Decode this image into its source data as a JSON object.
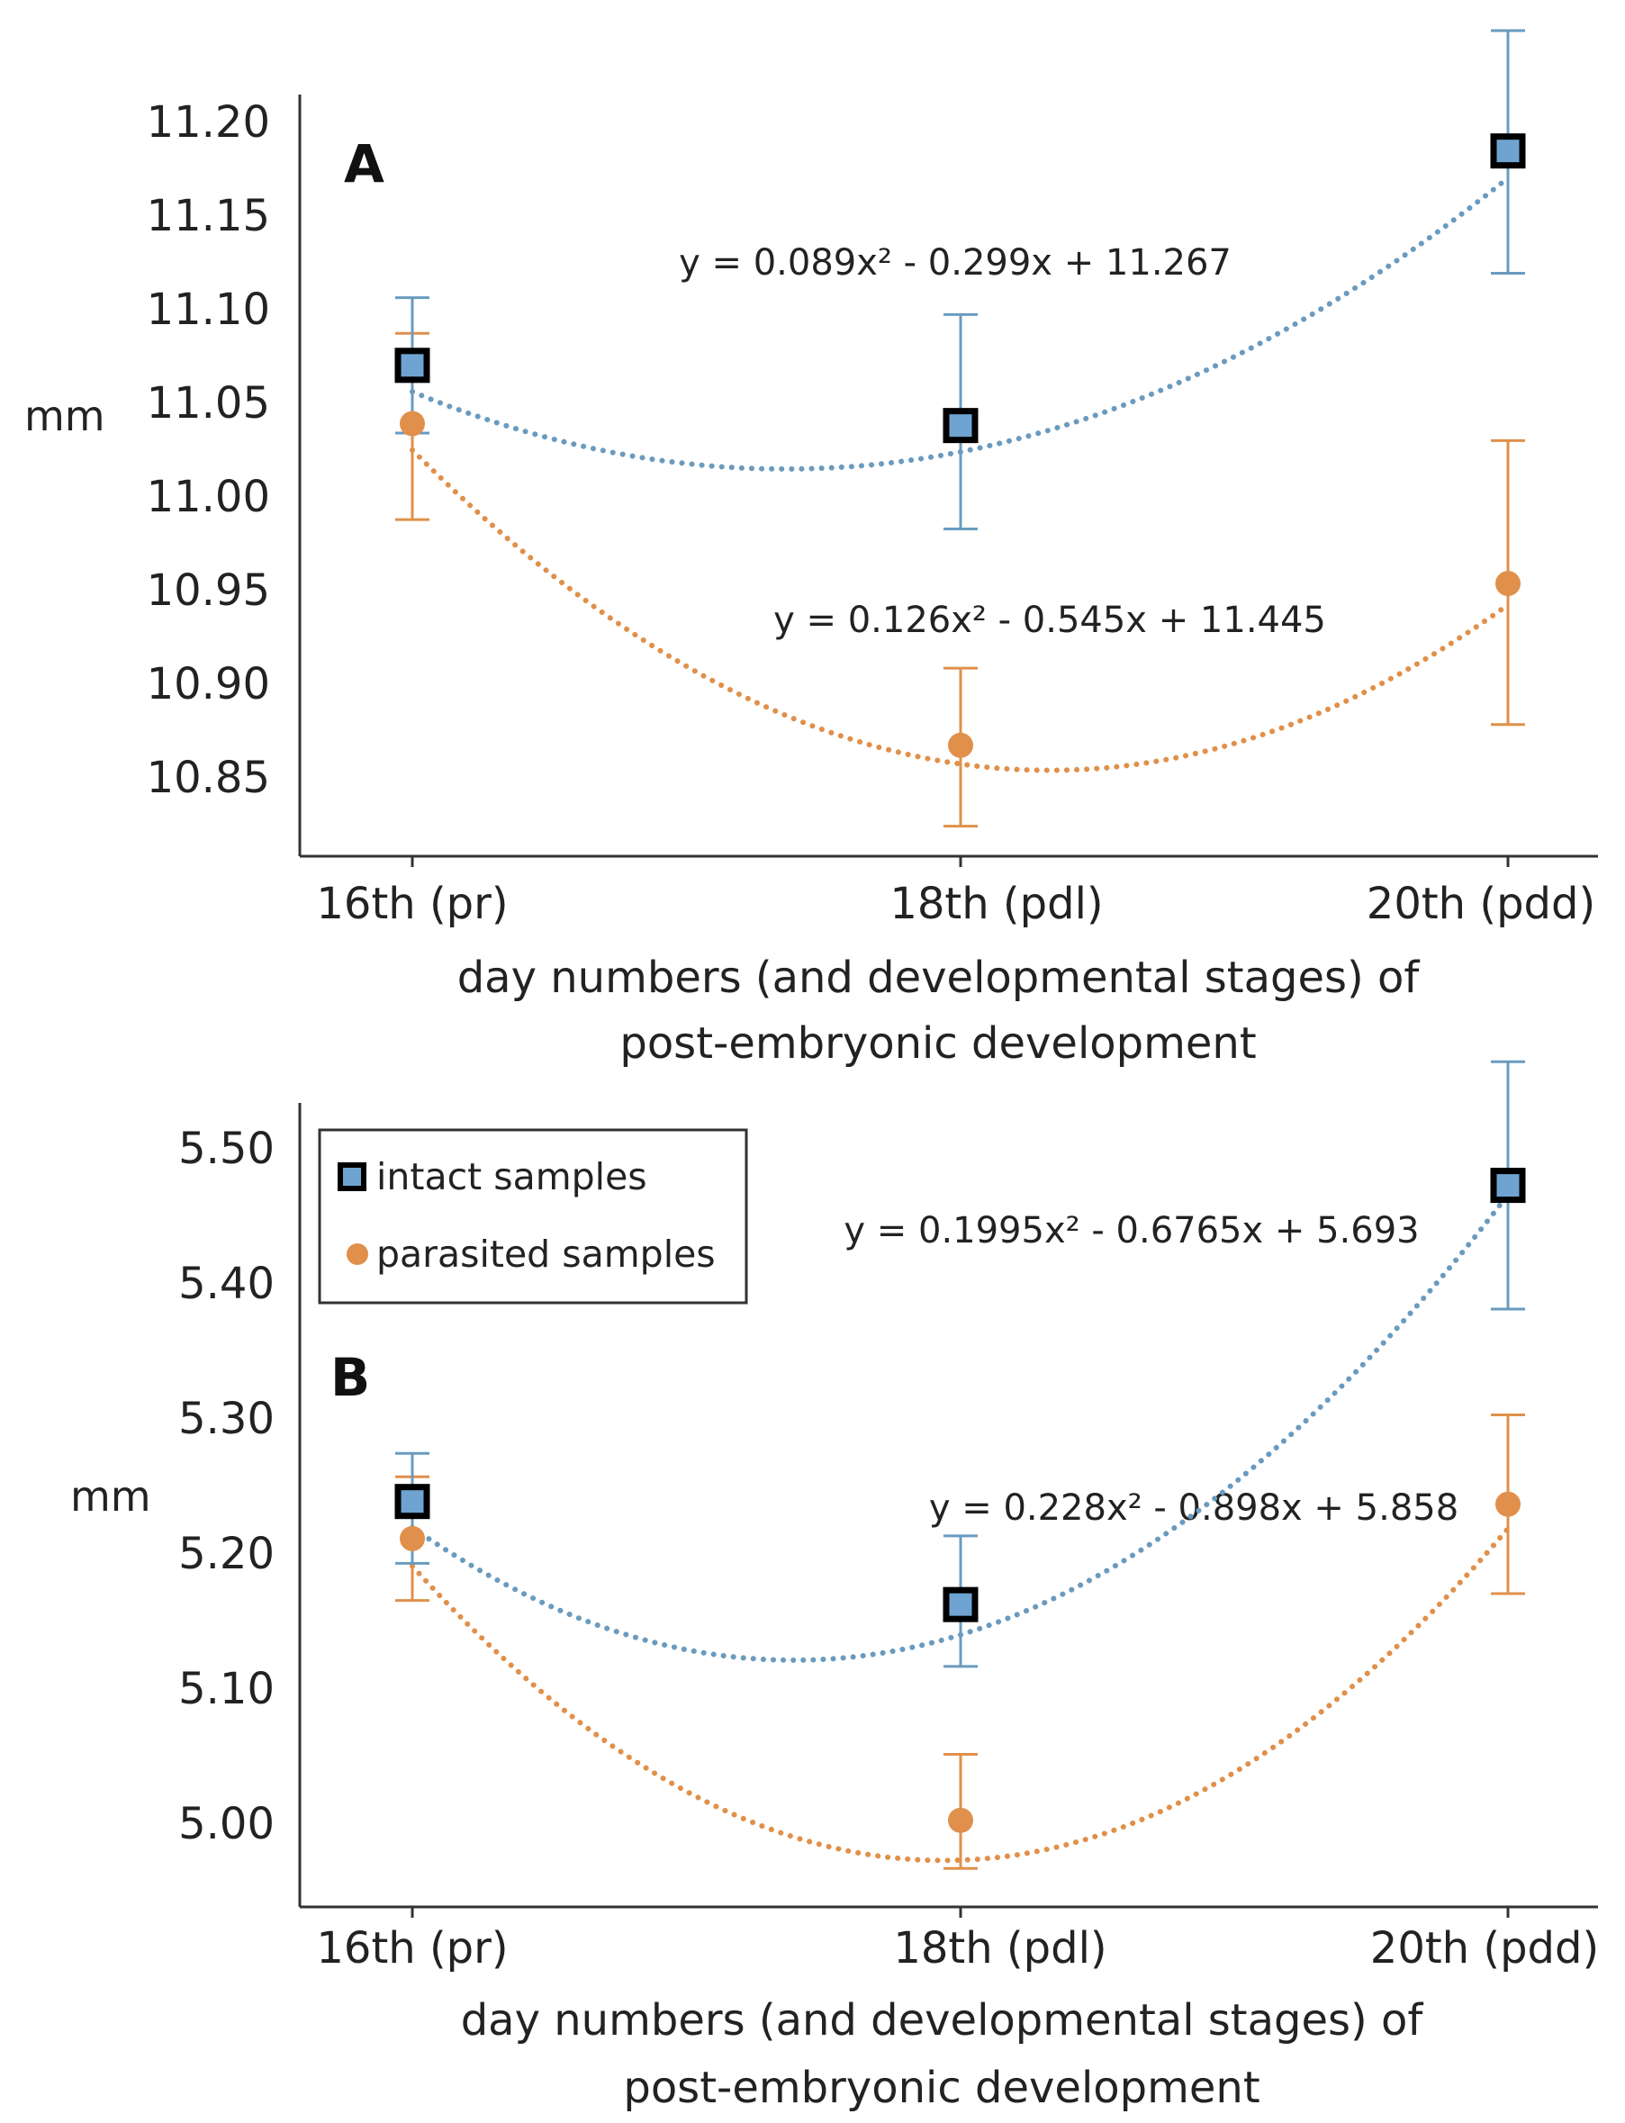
{
  "colors": {
    "intact": "#6a9bbf",
    "intact_fill": "#6fa3d1",
    "parasited": "#e0904a",
    "axis": "#333333"
  },
  "legend": {
    "intact": "intact samples",
    "parasited": "parasited samples"
  },
  "chart_data": [
    {
      "type": "scatter",
      "panel_label": "A",
      "ylabel": "mm",
      "xlabel_line1": "day numbers (and developmental stages) of",
      "xlabel_line2": "post-embryonic development",
      "categories": [
        "16th (pr)",
        "18th (pdl)",
        "20th (pdd)"
      ],
      "yticks": [
        "10.85",
        "10.90",
        "10.95",
        "11.00",
        "11.05",
        "11.10",
        "11.15",
        "11.20"
      ],
      "ylim": [
        10.81,
        11.215
      ],
      "series": [
        {
          "name": "intact samples",
          "values": [
            11.071,
            11.039,
            11.185
          ],
          "err_low": [
            0.036,
            0.055,
            0.065
          ],
          "err_high": [
            0.036,
            0.059,
            0.064
          ],
          "trend": [
            0.089,
            -0.299,
            11.267
          ],
          "equation": "y = 0.089x² - 0.299x + 11.267"
        },
        {
          "name": "parasited samples",
          "values": [
            11.04,
            10.869,
            10.955
          ],
          "err_low": [
            0.051,
            0.043,
            0.075
          ],
          "err_high": [
            0.048,
            0.041,
            0.076
          ],
          "trend": [
            0.126,
            -0.545,
            11.445
          ],
          "equation": "y = 0.126x² - 0.545x + 11.445"
        }
      ]
    },
    {
      "type": "scatter",
      "panel_label": "B",
      "ylabel": "mm",
      "xlabel_line1": "day numbers (and developmental stages) of",
      "xlabel_line2": "post-embryonic development",
      "categories": [
        "16th (pr)",
        "18th (pdl)",
        "20th (pdd)"
      ],
      "yticks": [
        "5.00",
        "5.10",
        "5.20",
        "5.30",
        "5.40",
        "5.50"
      ],
      "ylim": [
        4.94,
        5.525
      ],
      "series": [
        {
          "name": "intact samples",
          "values": [
            5.235,
            5.16,
            5.465
          ],
          "err_low": [
            0.045,
            0.045,
            0.09
          ],
          "err_high": [
            0.035,
            0.05,
            0.09
          ],
          "trend": [
            0.1995,
            -0.6765,
            5.693
          ],
          "equation": "y = 0.1995x² - 0.6765x + 5.693"
        },
        {
          "name": "parasited samples",
          "values": [
            5.208,
            5.003,
            5.233
          ],
          "err_low": [
            0.045,
            0.035,
            0.065
          ],
          "err_high": [
            0.045,
            0.048,
            0.065
          ],
          "trend": [
            0.228,
            -0.898,
            5.858
          ],
          "equation": "y = 0.228x² - 0.898x + 5.858"
        }
      ]
    }
  ]
}
